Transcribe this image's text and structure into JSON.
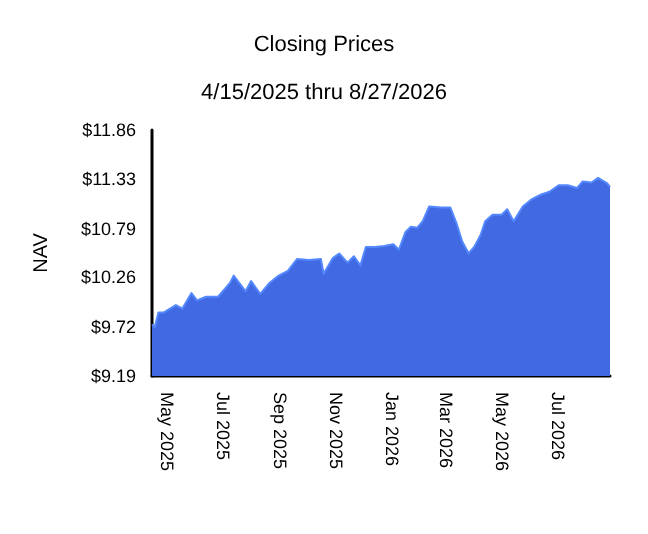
{
  "chart_data": {
    "type": "area",
    "title": "Closing Prices",
    "subtitle": "4/15/2025 thru 8/27/2026",
    "ylabel": "NAV",
    "x": [
      "2025-04-15",
      "2025-04-18",
      "2025-04-22",
      "2025-04-28",
      "2025-05-11",
      "2025-05-18",
      "2025-05-28",
      "2025-06-03",
      "2025-06-13",
      "2025-06-26",
      "2025-07-09",
      "2025-07-13",
      "2025-07-26",
      "2025-08-01",
      "2025-08-11",
      "2025-08-21",
      "2025-08-31",
      "2025-09-10",
      "2025-09-20",
      "2025-10-03",
      "2025-10-16",
      "2025-10-19",
      "2025-10-29",
      "2025-11-05",
      "2025-11-14",
      "2025-11-21",
      "2025-11-28",
      "2025-12-04",
      "2025-12-14",
      "2025-12-24",
      "2026-01-03",
      "2026-01-09",
      "2026-01-16",
      "2026-01-22",
      "2026-01-29",
      "2026-02-04",
      "2026-02-11",
      "2026-02-24",
      "2026-03-06",
      "2026-03-13",
      "2026-03-19",
      "2026-03-26",
      "2026-04-01",
      "2026-04-08",
      "2026-04-13",
      "2026-04-21",
      "2026-05-01",
      "2026-05-07",
      "2026-05-14",
      "2026-05-24",
      "2026-06-03",
      "2026-06-13",
      "2026-06-22",
      "2026-07-02",
      "2026-07-12",
      "2026-07-22",
      "2026-07-28",
      "2026-08-07",
      "2026-08-14",
      "2026-08-24",
      "2026-08-27"
    ],
    "series": [
      {
        "color": "#4169e1",
        "values": [
          9.75,
          9.72,
          9.88,
          9.88,
          9.96,
          9.92,
          10.09,
          10.01,
          10.05,
          10.05,
          10.2,
          10.28,
          10.11,
          10.22,
          10.08,
          10.2,
          10.28,
          10.33,
          10.46,
          10.45,
          10.46,
          10.3,
          10.47,
          10.52,
          10.42,
          10.49,
          10.39,
          10.59,
          10.59,
          10.6,
          10.62,
          10.56,
          10.75,
          10.81,
          10.8,
          10.87,
          11.03,
          11.02,
          11.02,
          10.84,
          10.65,
          10.52,
          10.59,
          10.72,
          10.87,
          10.94,
          10.94,
          11.0,
          10.87,
          11.03,
          11.11,
          11.16,
          11.19,
          11.26,
          11.26,
          11.23,
          11.3,
          11.29,
          11.34,
          11.28,
          11.24
        ]
      }
    ],
    "xlim": [
      "2025-04-15",
      "2026-08-27"
    ],
    "xticks": [
      {
        "value": "2025-05-01",
        "label": "May 2025"
      },
      {
        "value": "2025-07-01",
        "label": "Jul 2025"
      },
      {
        "value": "2025-09-01",
        "label": "Sep 2025"
      },
      {
        "value": "2025-11-01",
        "label": "Nov 2025"
      },
      {
        "value": "2026-01-01",
        "label": "Jan 2026"
      },
      {
        "value": "2026-03-01",
        "label": "Mar 2026"
      },
      {
        "value": "2026-05-01",
        "label": "May 2026"
      },
      {
        "value": "2026-07-01",
        "label": "Jul 2026"
      }
    ],
    "ylim": [
      9.19,
      11.86
    ],
    "yticks": [
      {
        "value": 9.19,
        "label": "$9.19"
      },
      {
        "value": 9.72,
        "label": "$9.72"
      },
      {
        "value": 10.26,
        "label": "$10.26"
      },
      {
        "value": 10.79,
        "label": "$10.79"
      },
      {
        "value": 11.33,
        "label": "$11.33"
      },
      {
        "value": 11.86,
        "label": "$11.86"
      }
    ],
    "grid": false
  }
}
